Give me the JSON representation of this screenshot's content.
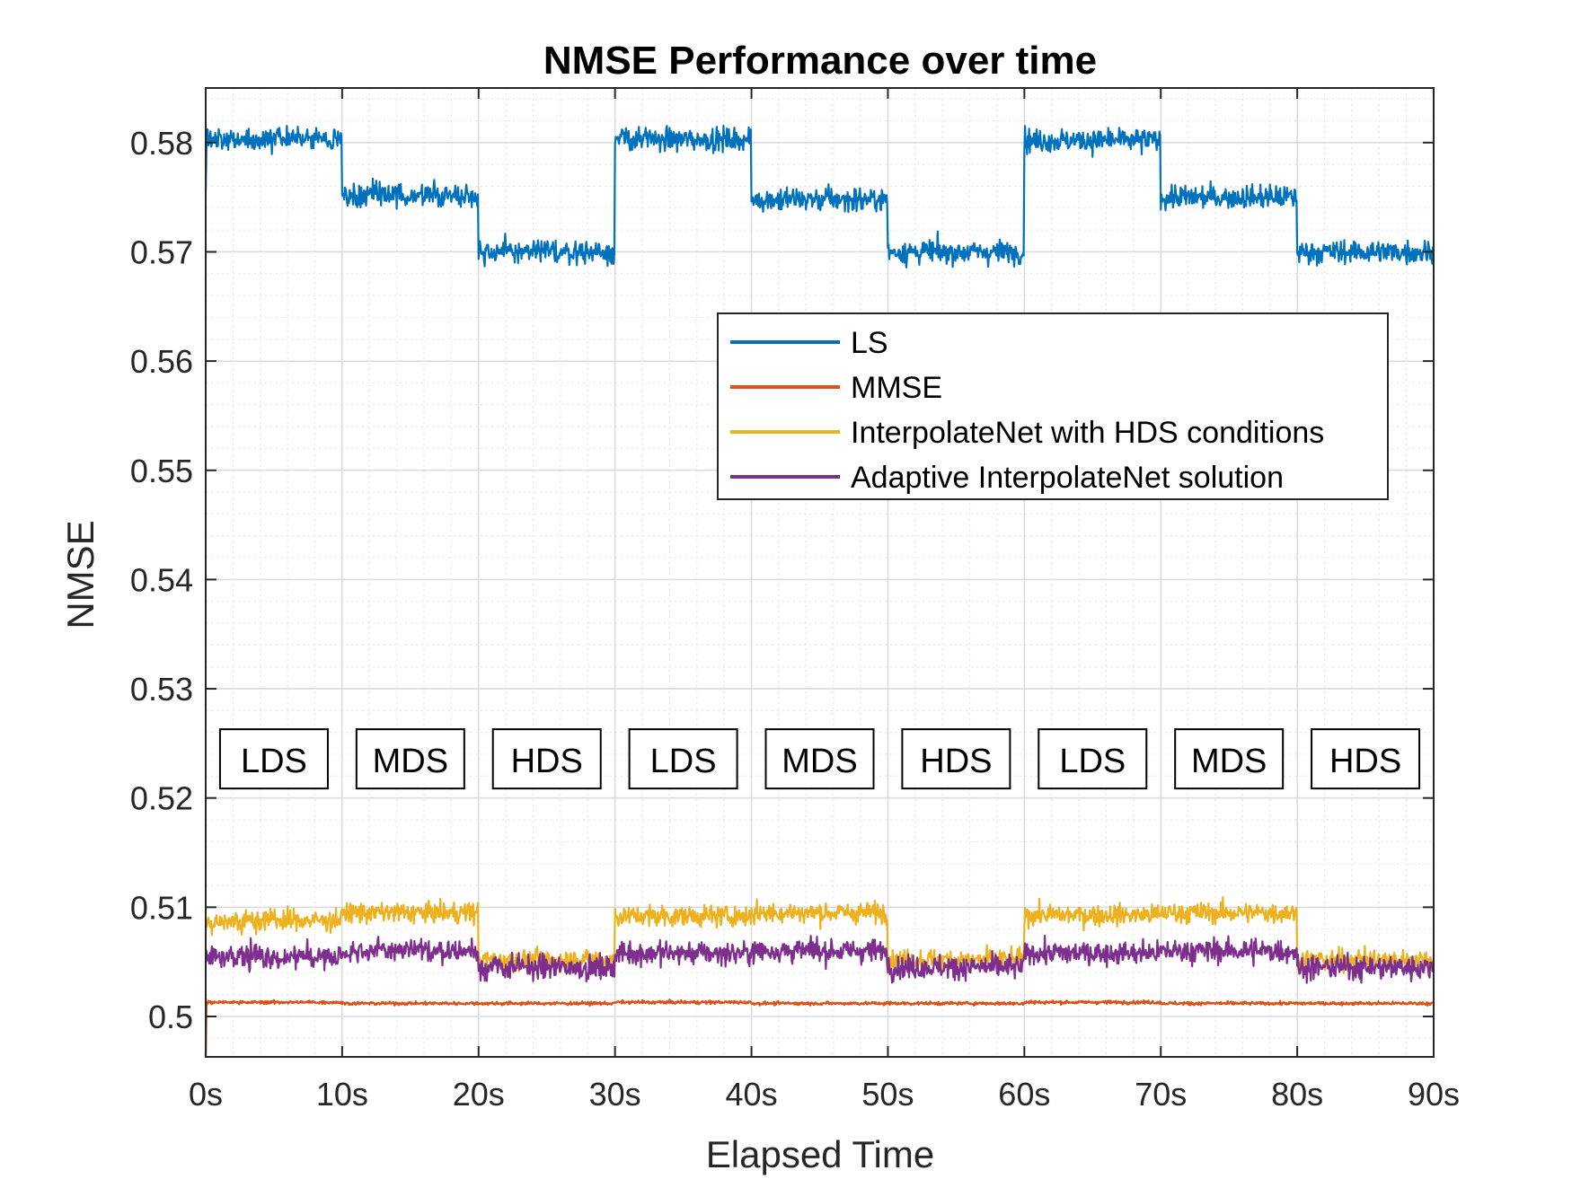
{
  "chart_data": {
    "type": "line",
    "title": "NMSE Performance over time",
    "xlabel": "Elapsed Time",
    "ylabel": "NMSE",
    "xlim": [
      0,
      90
    ],
    "ylim": [
      0.4963,
      0.585
    ],
    "grid": true,
    "minor_grid": true,
    "legend_position": "center-right",
    "x_ticks": [
      {
        "value": 0,
        "label": "0s"
      },
      {
        "value": 10,
        "label": "10s"
      },
      {
        "value": 20,
        "label": "20s"
      },
      {
        "value": 30,
        "label": "30s"
      },
      {
        "value": 40,
        "label": "40s"
      },
      {
        "value": 50,
        "label": "50s"
      },
      {
        "value": 60,
        "label": "60s"
      },
      {
        "value": 70,
        "label": "70s"
      },
      {
        "value": 80,
        "label": "80s"
      },
      {
        "value": 90,
        "label": "90s"
      }
    ],
    "y_ticks": [
      {
        "value": 0.5,
        "label": "0.5"
      },
      {
        "value": 0.51,
        "label": "0.51"
      },
      {
        "value": 0.52,
        "label": "0.52"
      },
      {
        "value": 0.53,
        "label": "0.53"
      },
      {
        "value": 0.54,
        "label": "0.54"
      },
      {
        "value": 0.55,
        "label": "0.55"
      },
      {
        "value": 0.56,
        "label": "0.56"
      },
      {
        "value": 0.57,
        "label": "0.57"
      },
      {
        "value": 0.58,
        "label": "0.58"
      }
    ],
    "segment_x": [
      0,
      10,
      20,
      30,
      40,
      50,
      60,
      70,
      80,
      90
    ],
    "series": [
      {
        "name": "LS",
        "color": "#0072BD",
        "segment_means": [
          0.5803,
          0.5752,
          0.57,
          0.5803,
          0.5748,
          0.57,
          0.5802,
          0.575,
          0.57
        ],
        "noise": 0.0009
      },
      {
        "name": "MMSE",
        "color": "#D95319",
        "segment_means": [
          0.5013,
          0.5012,
          0.5012,
          0.5013,
          0.5012,
          0.5012,
          0.5013,
          0.5012,
          0.5012
        ],
        "noise": 0.00012
      },
      {
        "name": "InterpolateNet with HDS conditions",
        "color": "#EDB120",
        "segment_means": [
          0.5088,
          0.5095,
          0.5052,
          0.5092,
          0.5095,
          0.5052,
          0.5093,
          0.5095,
          0.5052
        ],
        "noise": 0.0008
      },
      {
        "name": "Adaptive InterpolateNet solution",
        "color": "#7E2F8E",
        "segment_means": [
          0.5055,
          0.506,
          0.5045,
          0.5058,
          0.506,
          0.5045,
          0.5058,
          0.506,
          0.5045
        ],
        "noise": 0.0009
      }
    ],
    "annotations": [
      {
        "text": "LDS",
        "x": 5
      },
      {
        "text": "MDS",
        "x": 15
      },
      {
        "text": "HDS",
        "x": 25
      },
      {
        "text": "LDS",
        "x": 35
      },
      {
        "text": "MDS",
        "x": 45
      },
      {
        "text": "HDS",
        "x": 55
      },
      {
        "text": "LDS",
        "x": 65
      },
      {
        "text": "MDS",
        "x": 75
      },
      {
        "text": "HDS",
        "x": 85
      }
    ],
    "annotation_y": 0.5235
  }
}
